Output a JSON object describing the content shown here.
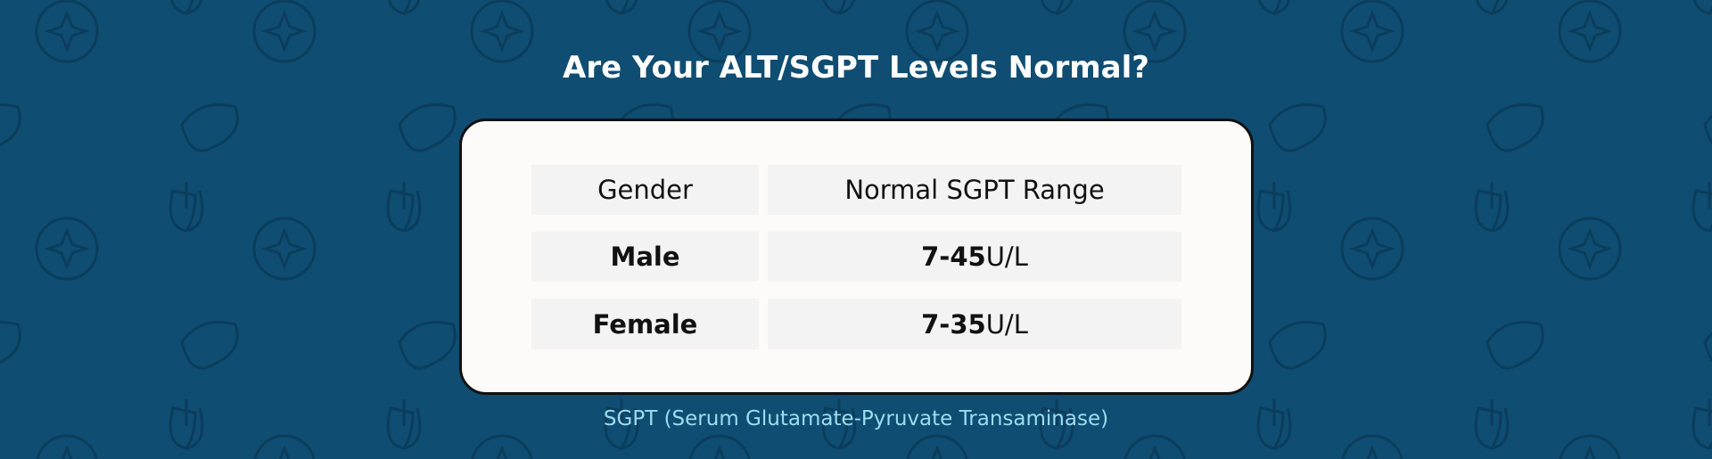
{
  "header": {
    "title": "Are Your ALT/SGPT Levels Normal?"
  },
  "table": {
    "columns": [
      "Gender",
      "Normal SGPT Range"
    ],
    "rows": [
      {
        "gender": "Male",
        "range": "7-45",
        "unit": "U/L"
      },
      {
        "gender": "Female",
        "range": "7-35",
        "unit": "U/L"
      }
    ]
  },
  "footer": {
    "note": "SGPT (Serum Glutamate-Pyruvate Transaminase)"
  }
}
